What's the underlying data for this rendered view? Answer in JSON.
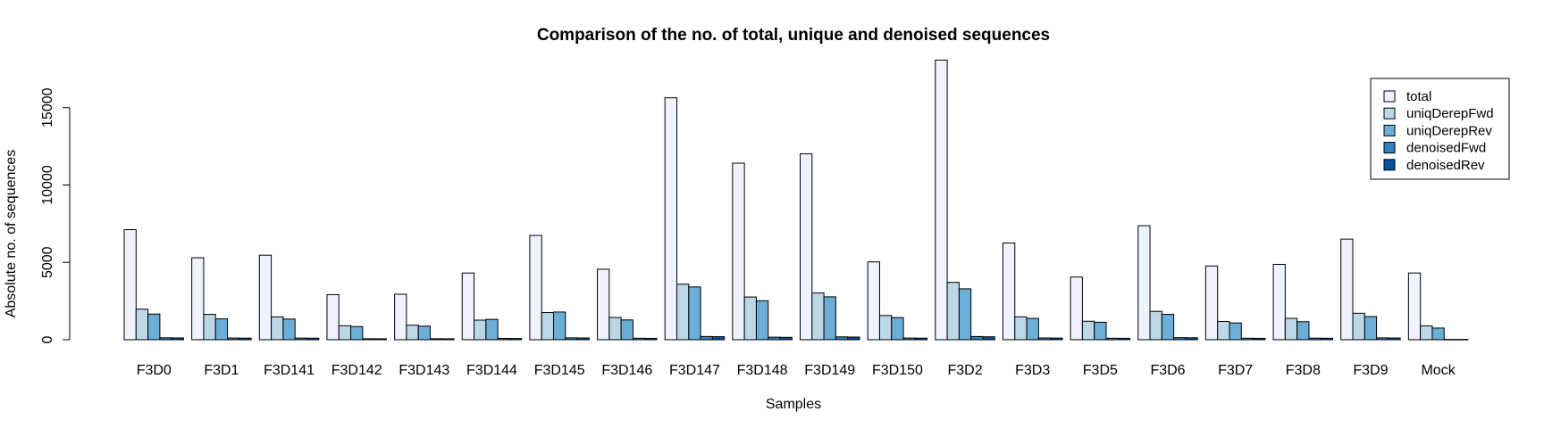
{
  "chart_data": {
    "type": "bar",
    "title": "Comparison of the no. of total, unique and denoised sequences",
    "xlabel": "Samples",
    "ylabel": "Absolute no. of sequences",
    "ylim": [
      0,
      18500
    ],
    "yticks": [
      0,
      5000,
      10000,
      15000
    ],
    "ytick_labels": [
      "0",
      "5000",
      "10000",
      "15000"
    ],
    "legend_position": "top-right",
    "grid": false,
    "categories": [
      "F3D0",
      "F3D1",
      "F3D141",
      "F3D142",
      "F3D143",
      "F3D144",
      "F3D145",
      "F3D146",
      "F3D147",
      "F3D148",
      "F3D149",
      "F3D150",
      "F3D2",
      "F3D3",
      "F3D5",
      "F3D6",
      "F3D7",
      "F3D8",
      "F3D9",
      "Mock"
    ],
    "series": [
      {
        "name": "total",
        "color": "#eff3ff",
        "values": [
          7113,
          5299,
          5463,
          2914,
          2941,
          4312,
          6741,
          4560,
          15637,
          11413,
          12017,
          5032,
          18075,
          6250,
          4052,
          7369,
          4765,
          4871,
          6504,
          4314
        ]
      },
      {
        "name": "uniqDerepFwd",
        "color": "#bdd7e7",
        "values": [
          1979,
          1639,
          1477,
          904,
          939,
          1267,
          1756,
          1438,
          3590,
          2762,
          3021,
          1566,
          3707,
          1479,
          1195,
          1832,
          1183,
          1382,
          1709,
          897
        ]
      },
      {
        "name": "uniqDerepRev",
        "color": "#6baed6",
        "values": [
          1660,
          1349,
          1335,
          853,
          879,
          1315,
          1790,
          1279,
          3410,
          2521,
          2772,
          1433,
          3290,
          1381,
          1130,
          1637,
          1085,
          1167,
          1496,
          754
        ]
      },
      {
        "name": "denoisedFwd",
        "color": "#3182bd",
        "values": [
          127,
          110,
          107,
          66,
          67,
          87,
          123,
          97,
          209,
          165,
          186,
          110,
          207,
          115,
          98,
          136,
          98,
          102,
          121,
          20
        ]
      },
      {
        "name": "denoisedRev",
        "color": "#08519c",
        "values": [
          117,
          102,
          100,
          62,
          61,
          82,
          115,
          90,
          197,
          155,
          173,
          103,
          191,
          107,
          92,
          127,
          91,
          96,
          113,
          20
        ]
      }
    ]
  }
}
